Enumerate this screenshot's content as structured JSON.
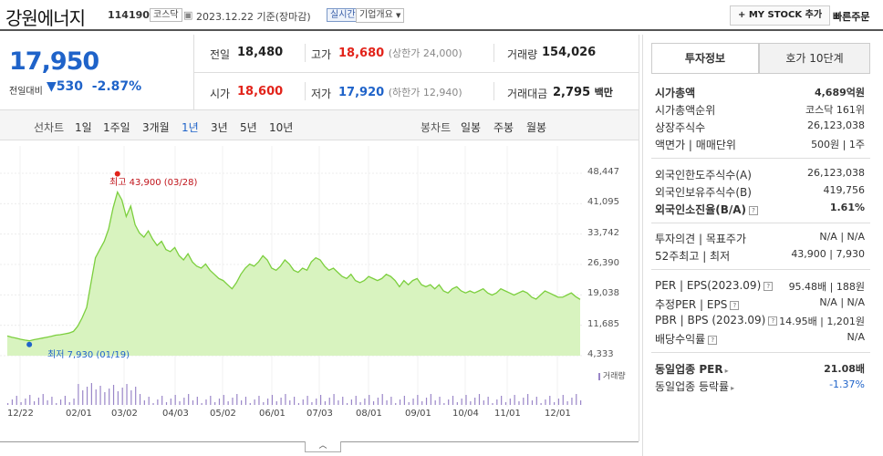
{
  "header": {
    "name": "강원에너지",
    "code": "114190",
    "market": "코스닥",
    "date": "2023.12.22",
    "basis": "기준(장마감)",
    "realtime": "실시간",
    "company_info": "기업개요",
    "mystock_label": "+ MY STOCK 추가",
    "quick_order": "빠른주문"
  },
  "quote": {
    "price": "17,950",
    "change_label": "전일대비",
    "change_value": "530",
    "change_pct": "-2.87%",
    "prev_label": "전일",
    "prev": "18,480",
    "high_label": "고가",
    "high": "18,680",
    "high_limit": "(상한가 24,000)",
    "volume_label": "거래량",
    "volume": "154,026",
    "open_label": "시가",
    "open": "18,600",
    "low_label": "저가",
    "low": "17,920",
    "low_limit": "(하한가 12,940)",
    "amount_label": "거래대금",
    "amount": "2,795",
    "amount_unit": "백만"
  },
  "periods": {
    "line_chart": "선차트",
    "items": [
      "1일",
      "1주일",
      "3개월",
      "1년",
      "3년",
      "5년",
      "10년"
    ],
    "selected": "1년",
    "candle_chart": "봉차트",
    "candle_items": [
      "일봉",
      "주봉",
      "월봉"
    ]
  },
  "chart": {
    "high_label": "최고 43,900 (03/28)",
    "low_label": "최저 7,930 (01/19)",
    "volume_label": "거래량",
    "collapse": "︿"
  },
  "chart_data": {
    "type": "area",
    "y_ticks": [
      "48,447",
      "41,095",
      "33,742",
      "26,390",
      "19,038",
      "11,685",
      "4,333"
    ],
    "ylim": [
      4333,
      48447
    ],
    "x_ticks": [
      "12/22",
      "02/01",
      "03/02",
      "04/03",
      "05/02",
      "06/01",
      "07/03",
      "08/01",
      "09/01",
      "10/04",
      "11/01",
      "12/01"
    ],
    "series": [
      {
        "values": [
          9100,
          8800,
          8600,
          8300,
          8100,
          7930,
          8200,
          8400,
          8600,
          8800,
          9000,
          9300,
          9400,
          9600,
          9800,
          10200,
          11500,
          13500,
          16000,
          22000,
          28000,
          30000,
          32000,
          35000,
          40000,
          43900,
          42000,
          38000,
          40500,
          36000,
          34000,
          33000,
          34500,
          32500,
          31000,
          32000,
          30000,
          29500,
          30500,
          28500,
          27500,
          29000,
          27000,
          26000,
          25500,
          26500,
          25000,
          24000,
          23000,
          22500,
          21500,
          20500,
          22000,
          24000,
          25500,
          26500,
          26000,
          27000,
          28500,
          27500,
          25500,
          25000,
          26000,
          27500,
          26500,
          25000,
          24500,
          25500,
          25000,
          27000,
          28000,
          27500,
          26000,
          25000,
          25500,
          24500,
          23500,
          23000,
          24000,
          22500,
          22000,
          22500,
          23500,
          23000,
          22500,
          23000,
          24000,
          23500,
          22500,
          21000,
          22500,
          21500,
          22500,
          23000,
          21500,
          21000,
          21500,
          20500,
          21500,
          20000,
          19500,
          20500,
          21000,
          20000,
          19500,
          20000,
          19500,
          20000,
          20500,
          19500,
          19000,
          19500,
          20500,
          20000,
          19500,
          19000,
          19500,
          20000,
          19500,
          18500,
          18000,
          19000,
          20000,
          19500,
          19000,
          18500,
          18480,
          19000,
          19500,
          18600,
          17950
        ]
      }
    ],
    "high": {
      "value": 43900,
      "date": "03/28"
    },
    "low": {
      "value": 7930,
      "date": "01/19"
    }
  },
  "invest": {
    "tab_info": "투자정보",
    "tab_hoga": "호가 10단계",
    "rows": [
      {
        "label": "시가총액",
        "value": "4,689억원",
        "bold": true
      },
      {
        "label": "시가총액순위",
        "value": "코스닥 161위"
      },
      {
        "label": "상장주식수",
        "value": "26,123,038"
      },
      {
        "label": "액면가 | 매매단위",
        "value": "500원 | 1주"
      }
    ],
    "rows2": [
      {
        "label": "외국인한도주식수(A)",
        "value": "26,123,038"
      },
      {
        "label": "외국인보유주식수(B)",
        "value": "419,756"
      },
      {
        "label": "외국인소진율(B/A)",
        "value": "1.61%",
        "bold": true
      }
    ],
    "rows3": [
      {
        "label": "투자의견 | 목표주가",
        "value": "N/A | N/A"
      },
      {
        "label": "52주최고 | 최저",
        "value": "43,900 | 7,930"
      }
    ],
    "rows4": [
      {
        "label": "PER | EPS(2023.09)",
        "value": "95.48배 | 188원"
      },
      {
        "label": "추정PER | EPS",
        "value": "N/A | N/A"
      },
      {
        "label": "PBR | BPS (2023.09)",
        "value": "14.95배 | 1,201원"
      },
      {
        "label": "배당수익률",
        "value": "N/A"
      }
    ],
    "rows5": [
      {
        "label": "동일업종 PER",
        "value": "21.08배",
        "bold": true
      },
      {
        "label": "동일업종 등락률",
        "value": "-1.37%",
        "color": "#1f63c9"
      }
    ]
  }
}
